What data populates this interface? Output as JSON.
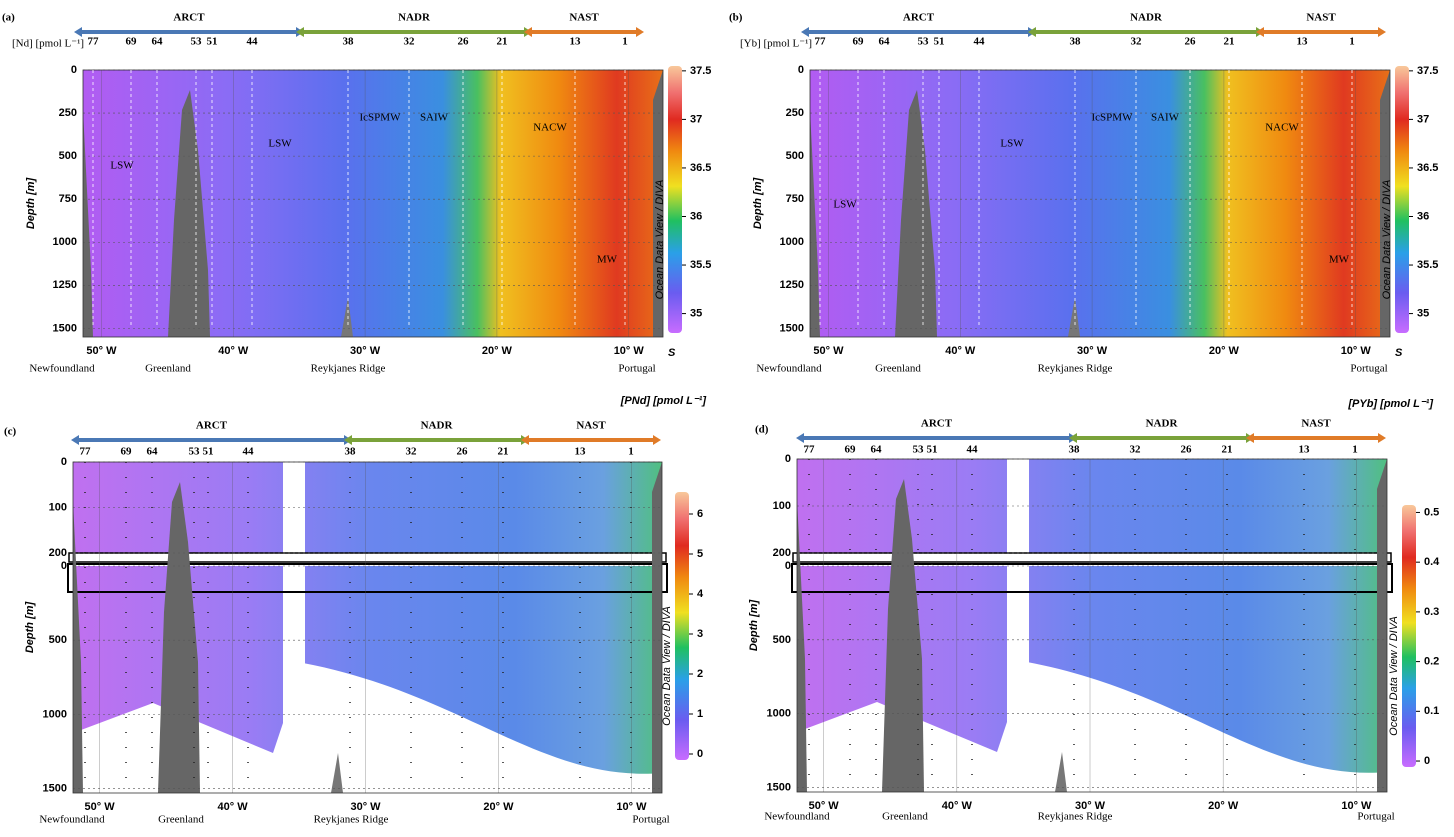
{
  "chart_data": [
    {
      "type": "section",
      "panel": "(a)",
      "unit_label": "[Nd] [pmol L⁻¹]",
      "ylabel": "Depth [m]",
      "xlim": [
        -51.4,
        -7.4
      ],
      "xticks": [
        {
          "value": -50,
          "label": "50° W"
        },
        {
          "value": -40,
          "label": "40° W"
        },
        {
          "value": -30,
          "label": "30° W"
        },
        {
          "value": -20,
          "label": "20° W"
        },
        {
          "value": -10,
          "label": "10° W"
        }
      ],
      "ylim": [
        0,
        1550
      ],
      "yticks": [
        0,
        250,
        500,
        750,
        1000,
        1250,
        1500
      ],
      "grid": true,
      "colorbar": {
        "title": "S",
        "lim": [
          34.8,
          37.55
        ],
        "ticks": [
          35,
          35.5,
          36,
          36.5,
          37,
          37.5
        ]
      },
      "provinces": [
        {
          "name": "ARCT",
          "color": "#4a78b5"
        },
        {
          "name": "NADR",
          "color": "#7aa23a"
        },
        {
          "name": "NAST",
          "color": "#e07b28"
        }
      ],
      "stations": [
        "77",
        "69",
        "64",
        "53",
        "51",
        "44",
        "38",
        "32",
        "26",
        "21",
        "13",
        "1"
      ],
      "locations": [
        "Newfoundland",
        "Greenland",
        "Reykjanes Ridge",
        "Portugal"
      ],
      "water_masses": [
        "LSW",
        "LSW",
        "IcSPMW",
        "SAIW",
        "NACW",
        "MW"
      ],
      "watermark": "Ocean Data View / DIVA"
    },
    {
      "type": "section",
      "panel": "(b)",
      "unit_label": "[Yb] [pmol L⁻¹]",
      "ylabel": "Depth [m]",
      "xlim": [
        -51.4,
        -7.4
      ],
      "xticks": [
        {
          "value": -50,
          "label": "50° W"
        },
        {
          "value": -40,
          "label": "40° W"
        },
        {
          "value": -30,
          "label": "30° W"
        },
        {
          "value": -20,
          "label": "20° W"
        },
        {
          "value": -10,
          "label": "10° W"
        }
      ],
      "ylim": [
        0,
        1550
      ],
      "yticks": [
        0,
        250,
        500,
        750,
        1000,
        1250,
        1500
      ],
      "grid": true,
      "colorbar": {
        "title": "S",
        "lim": [
          34.8,
          37.55
        ],
        "ticks": [
          35,
          35.5,
          36,
          36.5,
          37,
          37.5
        ]
      },
      "provinces": [
        {
          "name": "ARCT",
          "color": "#4a78b5"
        },
        {
          "name": "NADR",
          "color": "#7aa23a"
        },
        {
          "name": "NAST",
          "color": "#e07b28"
        }
      ],
      "stations": [
        "77",
        "69",
        "64",
        "53",
        "51",
        "44",
        "38",
        "32",
        "26",
        "21",
        "13",
        "1"
      ],
      "locations": [
        "Newfoundland",
        "Greenland",
        "Reykjanes Ridge",
        "Portugal"
      ],
      "water_masses": [
        "LSW",
        "LSW",
        "IcSPMW",
        "SAIW",
        "NACW",
        "MW"
      ],
      "watermark": "Ocean Data View / DIVA"
    },
    {
      "type": "split-section",
      "panel": "(c)",
      "ylabel": "Depth [m]",
      "xlim": [
        -52,
        -7.7
      ],
      "xticks": [
        {
          "value": -50,
          "label": "50° W"
        },
        {
          "value": -40,
          "label": "40° W"
        },
        {
          "value": -30,
          "label": "30° W"
        },
        {
          "value": -20,
          "label": "20° W"
        },
        {
          "value": -10,
          "label": "10° W"
        }
      ],
      "ylim_upper": [
        0,
        200
      ],
      "yticks_upper": [
        0,
        100,
        200
      ],
      "ylim": [
        0,
        1530
      ],
      "yticks": [
        0,
        500,
        1000,
        1500
      ],
      "grid": true,
      "colorbar": {
        "title": "[PNd] [pmol L⁻¹]",
        "lim": [
          -0.15,
          6.55
        ],
        "ticks": [
          0,
          1,
          2,
          3,
          4,
          5,
          6
        ]
      },
      "provinces": [
        {
          "name": "ARCT",
          "color": "#4a78b5"
        },
        {
          "name": "NADR",
          "color": "#7aa23a"
        },
        {
          "name": "NAST",
          "color": "#e07b28"
        }
      ],
      "stations": [
        "77",
        "69",
        "64",
        "53",
        "51",
        "44",
        "38",
        "32",
        "26",
        "21",
        "13",
        "1"
      ],
      "locations": [
        "Newfoundland",
        "Greenland",
        "Reykjanes Ridge",
        "Portugal"
      ],
      "watermark": "Ocean Data View / DIVA"
    },
    {
      "type": "split-section",
      "panel": "(d)",
      "ylabel": "Depth [m]",
      "xlim": [
        -52,
        -7.7
      ],
      "xticks": [
        {
          "value": -50,
          "label": "50° W"
        },
        {
          "value": -40,
          "label": "40° W"
        },
        {
          "value": -30,
          "label": "30° W"
        },
        {
          "value": -20,
          "label": "20° W"
        },
        {
          "value": -10,
          "label": "10° W"
        }
      ],
      "ylim_upper": [
        0,
        200
      ],
      "yticks_upper": [
        0,
        100,
        200
      ],
      "ylim": [
        0,
        1530
      ],
      "yticks": [
        0,
        500,
        1000,
        1500
      ],
      "grid": true,
      "colorbar": {
        "title": "[PYb] [pmol L⁻¹]",
        "lim": [
          -0.012,
          0.515
        ],
        "ticks": [
          0,
          0.1,
          0.2,
          0.3,
          0.4,
          0.5
        ]
      },
      "provinces": [
        {
          "name": "ARCT",
          "color": "#4a78b5"
        },
        {
          "name": "NADR",
          "color": "#7aa23a"
        },
        {
          "name": "NAST",
          "color": "#e07b28"
        }
      ],
      "stations": [
        "77",
        "69",
        "64",
        "53",
        "51",
        "44",
        "38",
        "32",
        "26",
        "21",
        "13",
        "1"
      ],
      "locations": [
        "Newfoundland",
        "Greenland",
        "Reykjanes Ridge",
        "Portugal"
      ],
      "watermark": "Ocean Data View / DIVA"
    }
  ]
}
